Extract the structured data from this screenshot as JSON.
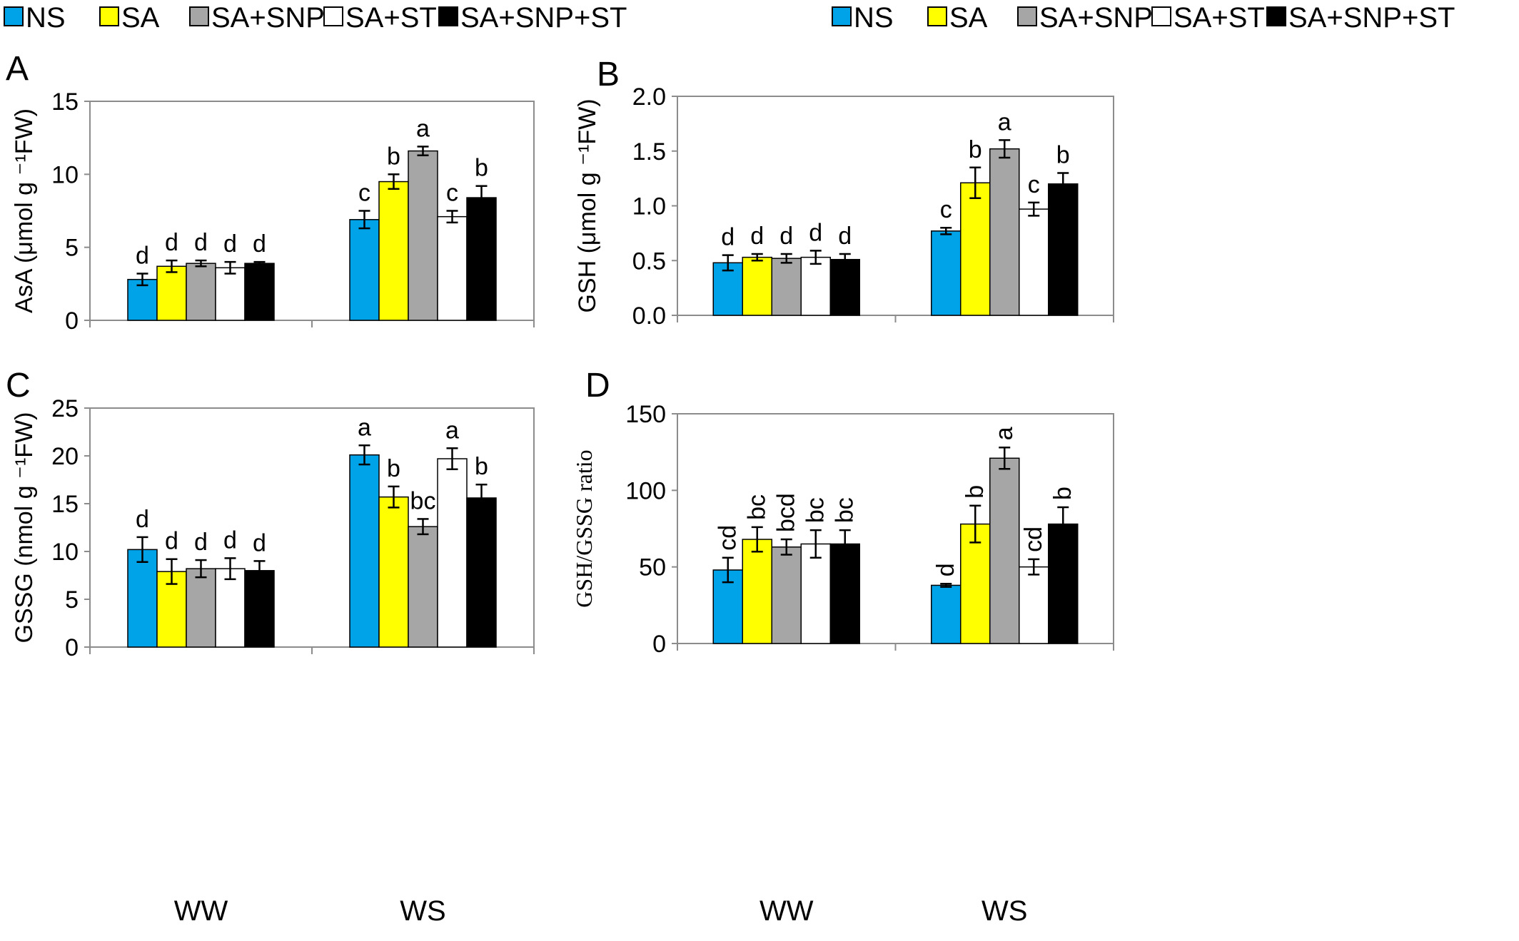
{
  "legend": {
    "entries": [
      {
        "label": "NS",
        "color": "#00a2e8"
      },
      {
        "label": "SA",
        "color": "#ffff00"
      },
      {
        "label": "SA+SNP",
        "color": "#a6a6a6"
      },
      {
        "label": "SA+ST",
        "color": "#ffffff"
      },
      {
        "label": "SA+SNP+ST",
        "color": "#000000"
      }
    ]
  },
  "chart_data": [
    {
      "type": "bar",
      "panel": "A",
      "ylabel": "AsA (μmol g ⁻¹FW)",
      "ylim": [
        0,
        15
      ],
      "yticks": [
        0,
        5,
        10,
        15
      ],
      "ytick_labels": [
        "0",
        "5",
        "10",
        "15"
      ],
      "categories": [
        "WW",
        "WS"
      ],
      "series": [
        {
          "name": "NS",
          "values": [
            2.8,
            6.9
          ],
          "errors": [
            0.4,
            0.6
          ],
          "letters": [
            "d",
            "c"
          ]
        },
        {
          "name": "SA",
          "values": [
            3.7,
            9.5
          ],
          "errors": [
            0.4,
            0.5
          ],
          "letters": [
            "d",
            "b"
          ]
        },
        {
          "name": "SA+SNP",
          "values": [
            3.9,
            11.6
          ],
          "errors": [
            0.2,
            0.3
          ],
          "letters": [
            "d",
            "a"
          ]
        },
        {
          "name": "SA+ST",
          "values": [
            3.6,
            7.1
          ],
          "errors": [
            0.4,
            0.4
          ],
          "letters": [
            "d",
            "c"
          ]
        },
        {
          "name": "SA+SNP+ST",
          "values": [
            3.9,
            8.4
          ],
          "errors": [
            0.1,
            0.8
          ],
          "letters": [
            "d",
            "b"
          ]
        }
      ]
    },
    {
      "type": "bar",
      "panel": "B",
      "ylabel": "GSH (μmol g ⁻¹FW)",
      "ylim": [
        0,
        2.0
      ],
      "yticks": [
        0,
        0.5,
        1.0,
        1.5,
        2.0
      ],
      "ytick_labels": [
        "0.0",
        "0.5",
        "1.0",
        "1.5",
        "2.0"
      ],
      "categories": [
        "WW",
        "WS"
      ],
      "series": [
        {
          "name": "NS",
          "values": [
            0.48,
            0.77
          ],
          "errors": [
            0.07,
            0.03
          ],
          "letters": [
            "d",
            "c"
          ]
        },
        {
          "name": "SA",
          "values": [
            0.53,
            1.21
          ],
          "errors": [
            0.03,
            0.14
          ],
          "letters": [
            "d",
            "b"
          ]
        },
        {
          "name": "SA+SNP",
          "values": [
            0.52,
            1.52
          ],
          "errors": [
            0.04,
            0.08
          ],
          "letters": [
            "d",
            "a"
          ]
        },
        {
          "name": "SA+ST",
          "values": [
            0.53,
            0.97
          ],
          "errors": [
            0.06,
            0.06
          ],
          "letters": [
            "d",
            "c"
          ]
        },
        {
          "name": "SA+SNP+ST",
          "values": [
            0.51,
            1.2
          ],
          "errors": [
            0.05,
            0.1
          ],
          "letters": [
            "d",
            "b"
          ]
        }
      ]
    },
    {
      "type": "bar",
      "panel": "C",
      "ylabel": "GSSG (nmol g ⁻¹FW)",
      "ylim": [
        0,
        25
      ],
      "yticks": [
        0,
        5,
        10,
        15,
        20,
        25
      ],
      "ytick_labels": [
        "0",
        "5",
        "10",
        "15",
        "20",
        "25"
      ],
      "categories": [
        "WW",
        "WS"
      ],
      "series": [
        {
          "name": "NS",
          "values": [
            10.2,
            20.1
          ],
          "errors": [
            1.3,
            1.0
          ],
          "letters": [
            "d",
            "a"
          ]
        },
        {
          "name": "SA",
          "values": [
            7.9,
            15.7
          ],
          "errors": [
            1.3,
            1.1
          ],
          "letters": [
            "d",
            "b"
          ]
        },
        {
          "name": "SA+SNP",
          "values": [
            8.2,
            12.6
          ],
          "errors": [
            0.9,
            0.8
          ],
          "letters": [
            "d",
            "bc"
          ]
        },
        {
          "name": "SA+ST",
          "values": [
            8.2,
            19.7
          ],
          "errors": [
            1.1,
            1.1
          ],
          "letters": [
            "d",
            "a"
          ]
        },
        {
          "name": "SA+SNP+ST",
          "values": [
            8.0,
            15.6
          ],
          "errors": [
            1.0,
            1.4
          ],
          "letters": [
            "d",
            "b"
          ]
        }
      ]
    },
    {
      "type": "bar",
      "panel": "D",
      "ylabel": "GSH/GSSG ratio",
      "ylim": [
        0,
        150
      ],
      "yticks": [
        0,
        50,
        100,
        150
      ],
      "ytick_labels": [
        "0",
        "50",
        "100",
        "150"
      ],
      "categories": [
        "WW",
        "WS"
      ],
      "series": [
        {
          "name": "NS",
          "values": [
            48,
            38
          ],
          "errors": [
            8,
            1
          ],
          "letters": [
            "cd",
            "d"
          ]
        },
        {
          "name": "SA",
          "values": [
            68,
            78
          ],
          "errors": [
            8,
            12
          ],
          "letters": [
            "bc",
            "b"
          ]
        },
        {
          "name": "SA+SNP",
          "values": [
            63,
            121
          ],
          "errors": [
            5,
            7
          ],
          "letters": [
            "bcd",
            "a"
          ]
        },
        {
          "name": "SA+ST",
          "values": [
            65,
            50
          ],
          "errors": [
            9,
            5
          ],
          "letters": [
            "bc",
            "cd"
          ]
        },
        {
          "name": "SA+SNP+ST",
          "values": [
            65,
            78
          ],
          "errors": [
            9,
            11
          ],
          "letters": [
            "bc",
            "b"
          ]
        }
      ]
    }
  ]
}
